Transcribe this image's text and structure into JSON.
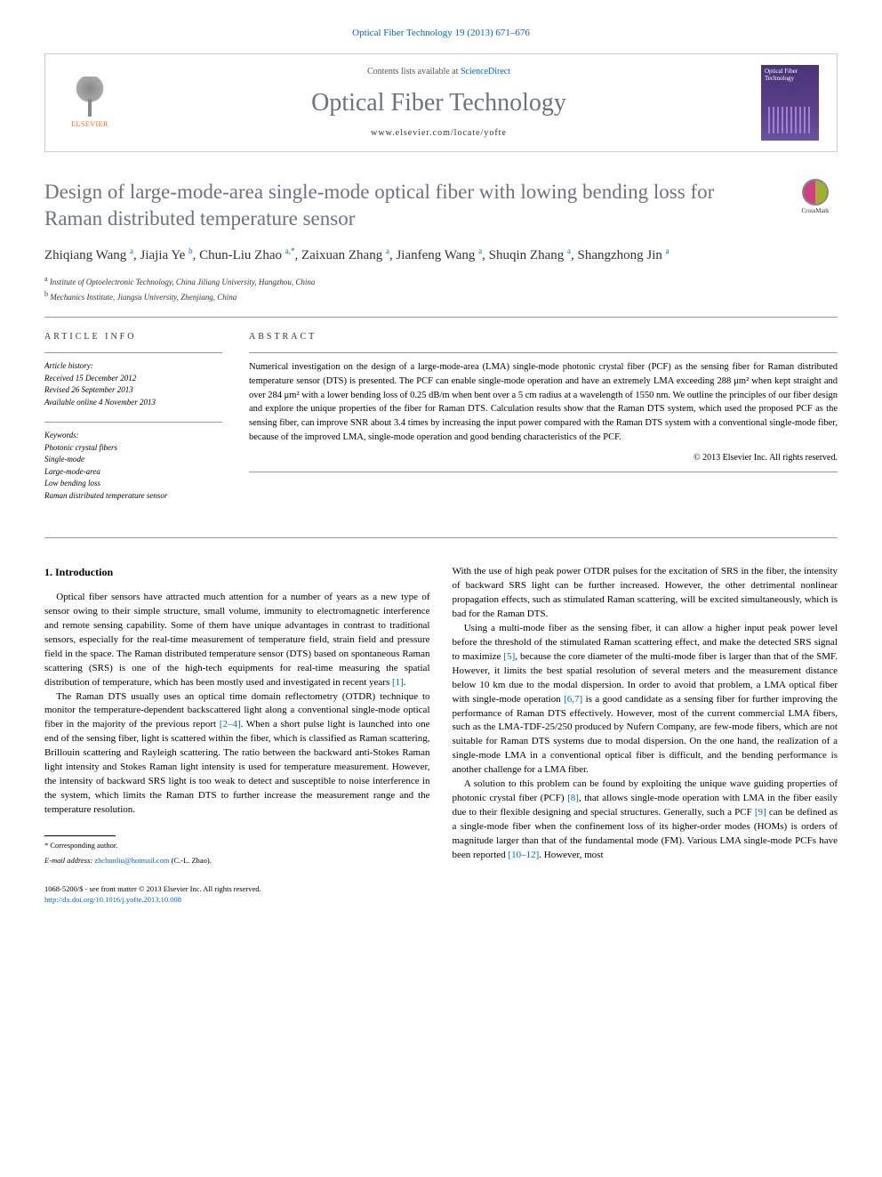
{
  "journal_ref": "Optical Fiber Technology 19 (2013) 671–676",
  "header": {
    "elsevier": "ELSEVIER",
    "contents_prefix": "Contents lists available at ",
    "contents_link": "ScienceDirect",
    "journal_name": "Optical Fiber Technology",
    "url": "www.elsevier.com/locate/yofte",
    "cover_title": "Optical Fiber Technology"
  },
  "crossmark": "CrossMark",
  "title": "Design of large-mode-area single-mode optical fiber with lowing bending loss for Raman distributed temperature sensor",
  "authors_html": "Zhiqiang Wang <sup>a</sup>, Jiajia Ye <sup>b</sup>, Chun-Liu Zhao <sup>a,*</sup>, Zaixuan Zhang <sup>a</sup>, Jianfeng Wang <sup>a</sup>, Shuqin Zhang <sup>a</sup>, Shangzhong Jin <sup>a</sup>",
  "affiliations": {
    "a": "Institute of Optoelectronic Technology, China Jiliang University, Hangzhou, China",
    "b": "Mechanics Institute, Jiangsu University, Zhenjiang, China"
  },
  "info_heading": "ARTICLE INFO",
  "abstract_heading": "ABSTRACT",
  "history": {
    "label": "Article history:",
    "received": "Received 15 December 2012",
    "revised": "Revised 26 September 2013",
    "online": "Available online 4 November 2013"
  },
  "keywords": {
    "label": "Keywords:",
    "items": [
      "Photonic crystal fibers",
      "Single-mode",
      "Large-mode-area",
      "Low bending loss",
      "Raman distributed temperature sensor"
    ]
  },
  "abstract": "Numerical investigation on the design of a large-mode-area (LMA) single-mode photonic crystal fiber (PCF) as the sensing fiber for Raman distributed temperature sensor (DTS) is presented. The PCF can enable single-mode operation and have an extremely LMA exceeding 288 μm² when kept straight and over 284 μm² with a lower bending loss of 0.25 dB/m when bent over a 5 cm radius at a wavelength of 1550 nm. We outline the principles of our fiber design and explore the unique properties of the fiber for Raman DTS. Calculation results show that the Raman DTS system, which used the proposed PCF as the sensing fiber, can improve SNR about 3.4 times by increasing the input power compared with the Raman DTS system with a conventional single-mode fiber, because of the improved LMA, single-mode operation and good bending characteristics of the PCF.",
  "abstract_copyright": "© 2013 Elsevier Inc. All rights reserved.",
  "section1": "1. Introduction",
  "para1": "Optical fiber sensors have attracted much attention for a number of years as a new type of sensor owing to their simple structure, small volume, immunity to electromagnetic interference and remote sensing capability. Some of them have unique advantages in contrast to traditional sensors, especially for the real-time measurement of temperature field, strain field and pressure field in the space. The Raman distributed temperature sensor (DTS) based on spontaneous Raman scattering (SRS) is one of the high-tech equipments for real-time measuring the spatial distribution of temperature, which has been mostly used and investigated in recent years [1].",
  "para2": "The Raman DTS usually uses an optical time domain reflectometry (OTDR) technique to monitor the temperature-dependent backscattered light along a conventional single-mode optical fiber in the majority of the previous report [2–4]. When a short pulse light is launched into one end of the sensing fiber, light is scattered within the fiber, which is classified as Raman scattering, Brillouin scattering and Rayleigh scattering. The ratio between the backward anti-Stokes Raman light intensity and Stokes Raman light intensity is used for temperature measurement. However, the intensity of backward SRS light is too weak to detect and susceptible to noise interference in the system, which limits the Raman DTS to further increase the measurement range and the temperature resolution.",
  "para3": "With the use of high peak power OTDR pulses for the excitation of SRS in the fiber, the intensity of backward SRS light can be further increased. However, the other detrimental nonlinear propagation effects, such as stimulated Raman scattering, will be excited simultaneously, which is bad for the Raman DTS.",
  "para4": "Using a multi-mode fiber as the sensing fiber, it can allow a higher input peak power level before the threshold of the stimulated Raman scattering effect, and make the detected SRS signal to maximize [5], because the core diameter of the multi-mode fiber is larger than that of the SMF. However, it limits the best spatial resolution of several meters and the measurement distance below 10 km due to the modal dispersion. In order to avoid that problem, a LMA optical fiber with single-mode operation [6,7] is a good candidate as a sensing fiber for further improving the performance of Raman DTS effectively. However, most of the current commercial LMA fibers, such as the LMA-TDF-25/250 produced by Nufern Company, are few-mode fibers, which are not suitable for Raman DTS systems due to modal dispersion. On the one hand, the realization of a single-mode LMA in a conventional optical fiber is difficult, and the bending performance is another challenge for a LMA fiber.",
  "para5": "A solution to this problem can be found by exploiting the unique wave guiding properties of photonic crystal fiber (PCF) [8], that allows single-mode operation with LMA in the fiber easily due to their flexible designing and special structures. Generally, such a PCF [9] can be defined as a single-mode fiber when the confinement loss of its higher-order modes (HOMs) is orders of magnitude larger than that of the fundamental mode (FM). Various LMA single-mode PCFs have been reported [10–12]. However, most",
  "footnote": {
    "corr": "* Corresponding author.",
    "email_label": "E-mail address: ",
    "email": "zhchunliu@hotmail.com",
    "email_suffix": " (C.-L. Zhao)."
  },
  "bottom": {
    "line1": "1068-5200/$ - see front matter © 2013 Elsevier Inc. All rights reserved.",
    "doi": "http://dx.doi.org/10.1016/j.yofte.2013.10.008"
  },
  "colors": {
    "link": "#0066cc",
    "title_gray": "#6b7280",
    "elsevier_orange": "#ff6600"
  }
}
